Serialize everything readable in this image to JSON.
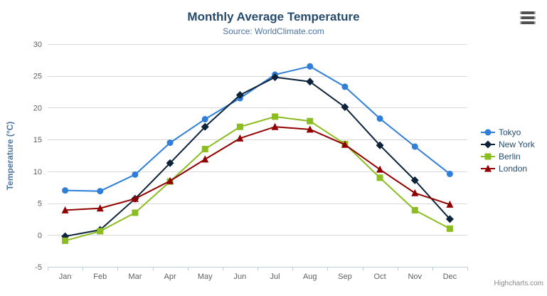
{
  "credits": {
    "label": "Highcharts.com"
  },
  "export_menu": {
    "icon": "hamburger-icon"
  },
  "theme": {
    "background": "#ffffff",
    "title-color": "#274b6d",
    "subtitle-color": "#4d759e",
    "axis-title-color": "#4d759e",
    "axis-label-color": "#606060",
    "grid-color": "#d8d8d8",
    "axis-line-color": "#c0d0e0",
    "legend-text-color": "#274b6d",
    "credits-color": "#8a8a8a",
    "menu-icon-color": "#505050"
  },
  "chart_data": {
    "type": "line",
    "title": "Monthly Average Temperature",
    "subtitle": "Source: WorldClimate.com",
    "xlabel": "",
    "ylabel": "Temperature (°C)",
    "categories": [
      "Jan",
      "Feb",
      "Mar",
      "Apr",
      "May",
      "Jun",
      "Jul",
      "Aug",
      "Sep",
      "Oct",
      "Nov",
      "Dec"
    ],
    "ylim": [
      -5,
      30
    ],
    "ytick_step": 5,
    "grid": true,
    "legend_position": "right-middle-vertical",
    "series": [
      {
        "name": "Tokyo",
        "color": "#2f7ed8",
        "marker": "circle",
        "values": [
          7.0,
          6.9,
          9.5,
          14.5,
          18.2,
          21.5,
          25.2,
          26.5,
          23.3,
          18.3,
          13.9,
          9.6
        ]
      },
      {
        "name": "New York",
        "color": "#0d233a",
        "marker": "diamond",
        "values": [
          -0.2,
          0.8,
          5.7,
          11.3,
          17.0,
          22.0,
          24.8,
          24.1,
          20.1,
          14.1,
          8.6,
          2.5
        ]
      },
      {
        "name": "Berlin",
        "color": "#8bbc21",
        "marker": "square",
        "values": [
          -0.9,
          0.6,
          3.5,
          8.4,
          13.5,
          17.0,
          18.6,
          17.9,
          14.3,
          9.0,
          3.9,
          1.0
        ]
      },
      {
        "name": "London",
        "color": "#910000",
        "marker": "triangle",
        "values": [
          3.9,
          4.2,
          5.7,
          8.5,
          11.9,
          15.2,
          17.0,
          16.6,
          14.2,
          10.3,
          6.6,
          4.8
        ]
      }
    ]
  }
}
